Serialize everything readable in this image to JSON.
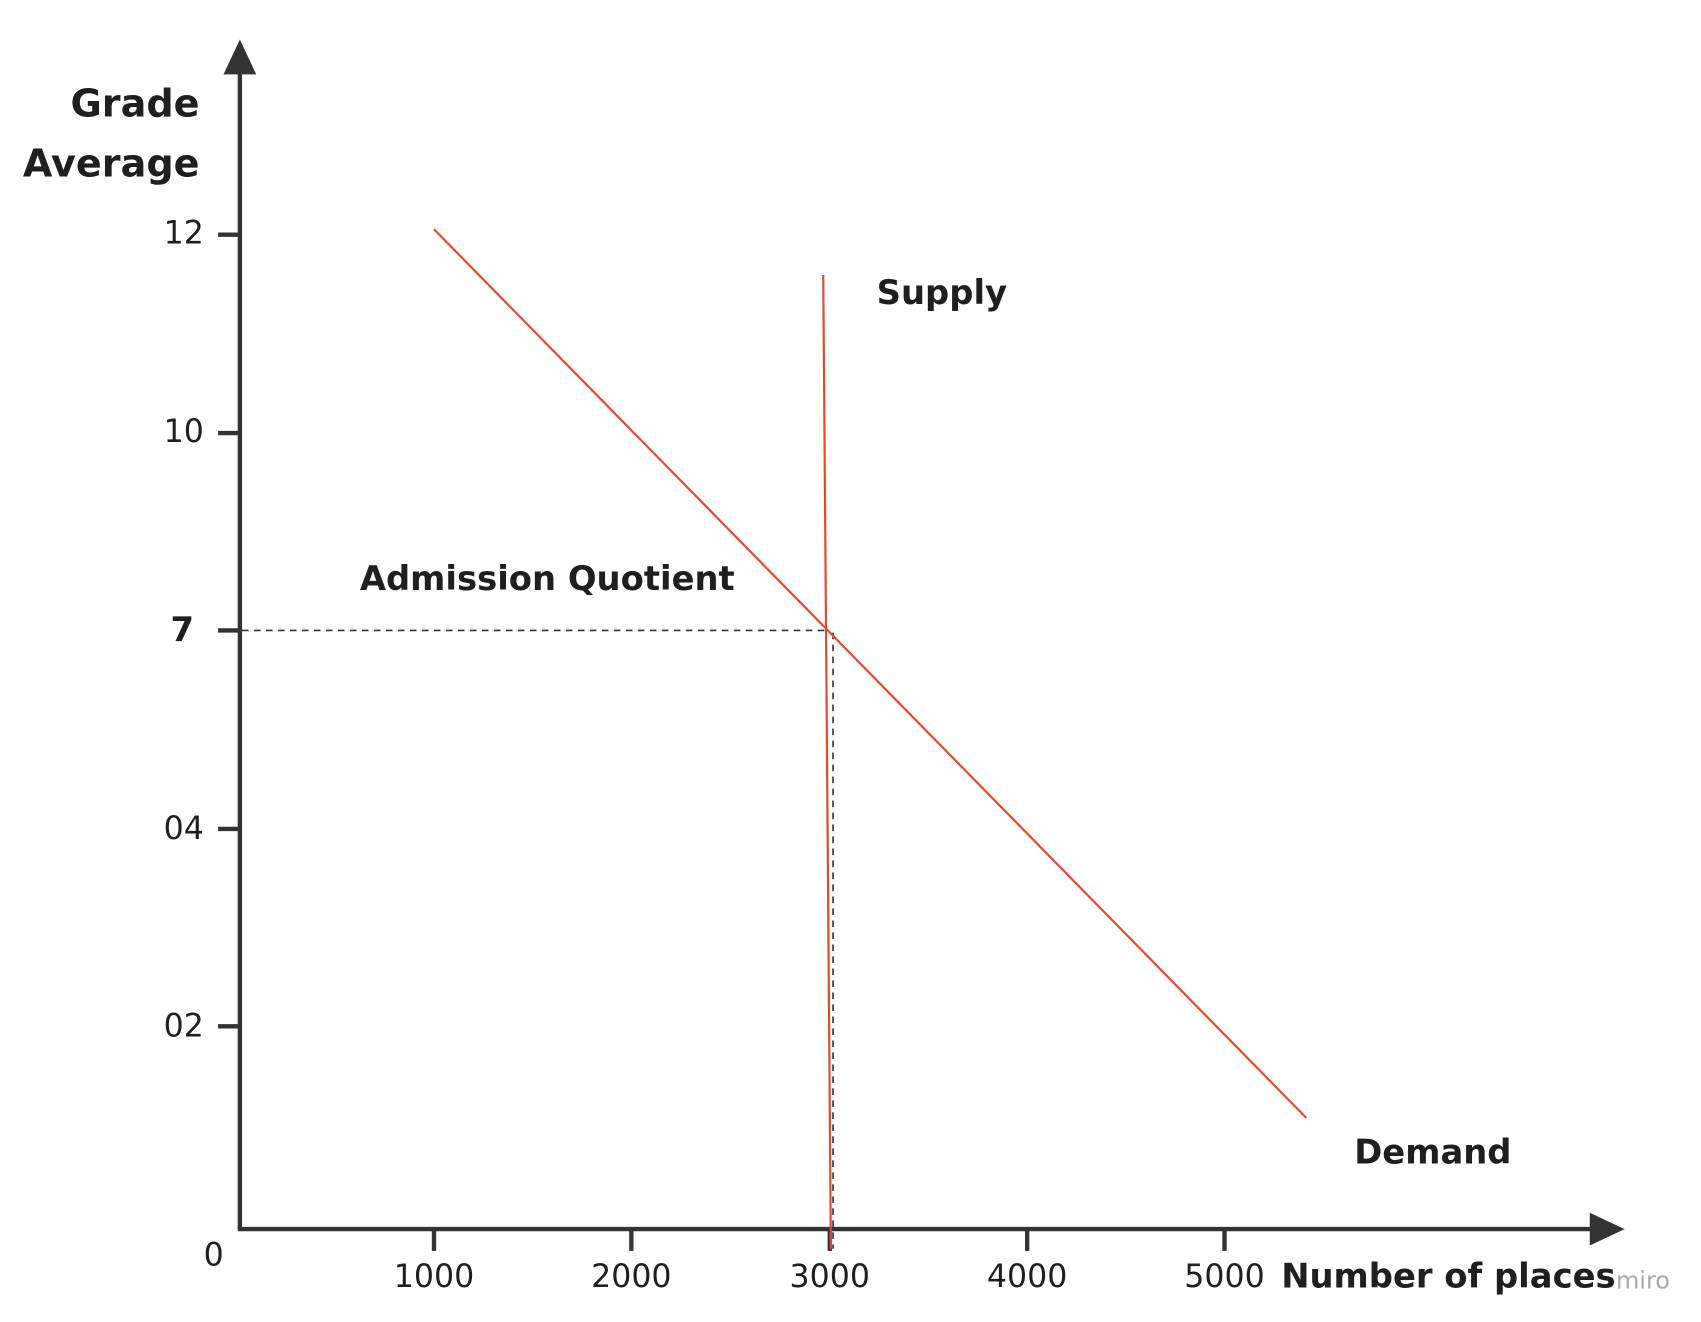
{
  "y_axis": {
    "title_lines": [
      "Grade",
      "Average"
    ],
    "ticks": [
      "12",
      "10",
      "7",
      "04",
      "02"
    ]
  },
  "origin": "0",
  "x_axis": {
    "title": "Number of places",
    "ticks": [
      "1000",
      "2000",
      "3000",
      "4000",
      "5000"
    ]
  },
  "annotations": {
    "supply": "Supply",
    "demand": "Demand",
    "admission_quotient": "Admission Quotient"
  },
  "watermark": "miro"
}
